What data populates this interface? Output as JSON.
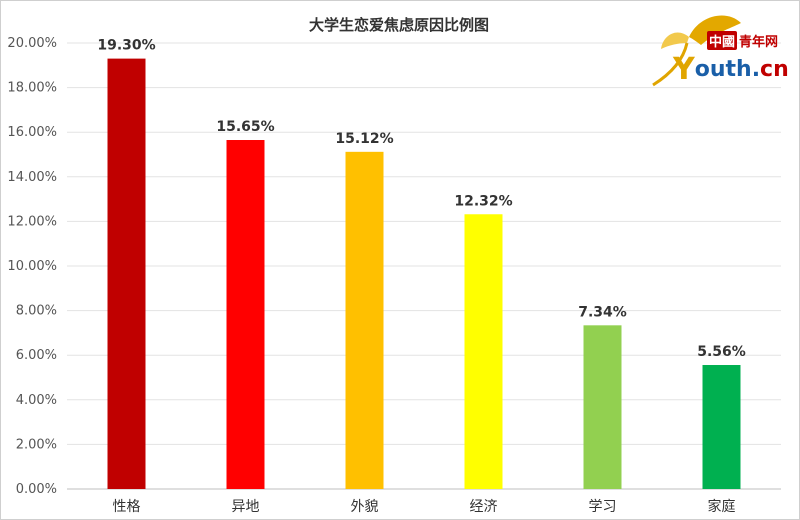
{
  "logo": {
    "cn_mark": "中國",
    "cn_text": "青年网",
    "en_y": "Y",
    "en_text": "outh.",
    "en_tld": "cn"
  },
  "colors": {
    "bar_colors": [
      "#c00000",
      "#ff0000",
      "#ffc000",
      "#ffff00",
      "#92d050",
      "#00b050"
    ]
  },
  "chart_data": {
    "type": "bar",
    "title": "大学生恋爱焦虑原因比例图",
    "categories": [
      "性格",
      "异地",
      "外貌",
      "经济",
      "学习",
      "家庭"
    ],
    "values": [
      19.3,
      15.65,
      15.12,
      12.32,
      7.34,
      5.56
    ],
    "value_labels": [
      "19.30%",
      "15.65%",
      "15.12%",
      "12.32%",
      "7.34%",
      "5.56%"
    ],
    "yticks": [
      "0.00%",
      "2.00%",
      "4.00%",
      "6.00%",
      "8.00%",
      "10.00%",
      "12.00%",
      "14.00%",
      "16.00%",
      "18.00%",
      "20.00%"
    ],
    "ylim": [
      0,
      20
    ],
    "grid": true,
    "xlabel": "",
    "ylabel": ""
  }
}
